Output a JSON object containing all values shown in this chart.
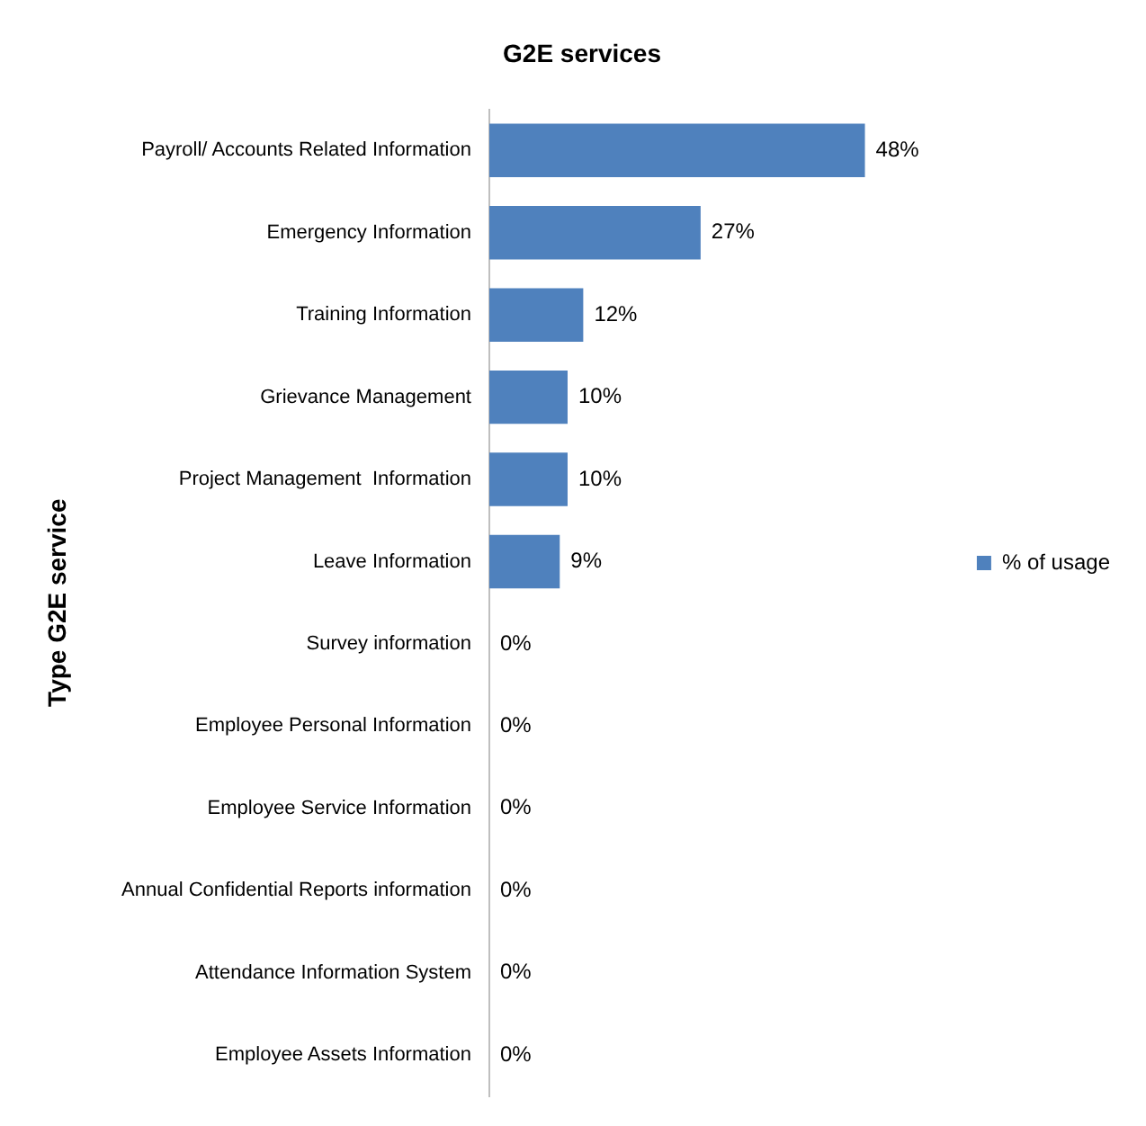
{
  "chart_data": {
    "type": "bar",
    "orientation": "horizontal",
    "title": "G2E services",
    "ylabel": "Type G2E service",
    "categories": [
      "Payroll/ Accounts Related Information",
      "Emergency Information",
      "Training Information",
      "Grievance Management",
      "Project Management  Information",
      "Leave Information",
      "Survey information",
      "Employee Personal Information",
      "Employee Service Information",
      "Annual Confidential Reports information",
      "Attendance Information System",
      "Employee Assets Information"
    ],
    "series": [
      {
        "name": "% of usage",
        "color": "#4f81bd",
        "values": [
          48,
          27,
          12,
          10,
          10,
          9,
          0,
          0,
          0,
          0,
          0,
          0
        ],
        "value_labels": [
          "48%",
          "27%",
          "12%",
          "10%",
          "10%",
          "9%",
          "0%",
          "0%",
          "0%",
          "0%",
          "0%",
          "0%"
        ]
      }
    ],
    "tick_labels": "y",
    "legend": "right"
  }
}
